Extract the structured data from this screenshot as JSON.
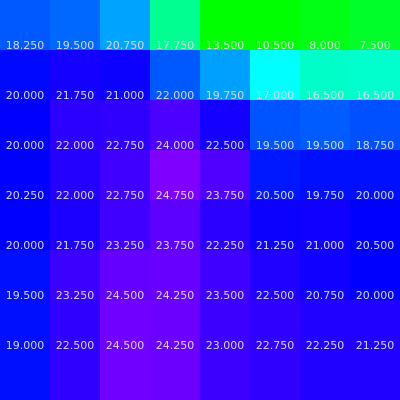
{
  "chart_data": {
    "type": "heatmap",
    "title": "",
    "xlabel": "",
    "ylabel": "",
    "grid": false,
    "legend": "none",
    "value_format": "0.000",
    "colormap": "gist_rainbow-like, reversed: low values green/cyan, high values violet",
    "value_range": [
      7.5,
      24.75
    ],
    "color_stops": [
      {
        "value": 7.5,
        "color": "#00ff2a"
      },
      {
        "value": 10.5,
        "color": "#00ff00"
      },
      {
        "value": 13.5,
        "color": "#00ff15"
      },
      {
        "value": 16.5,
        "color": "#00ffc8"
      },
      {
        "value": 17.5,
        "color": "#00ffcc"
      },
      {
        "value": 17.75,
        "color": "#00ff90"
      },
      {
        "value": 18.25,
        "color": "#0058ff"
      },
      {
        "value": 18.5,
        "color": "#006cff"
      },
      {
        "value": 18.75,
        "color": "#0054ff"
      },
      {
        "value": 19.0,
        "color": "#0024ff"
      },
      {
        "value": 19.5,
        "color": "#0018ff"
      },
      {
        "value": 19.75,
        "color": "#0010ff"
      },
      {
        "value": 20.0,
        "color": "#0000ff"
      },
      {
        "value": 20.5,
        "color": "#0c00ff"
      },
      {
        "value": 21.0,
        "color": "#1400ff"
      },
      {
        "value": 21.75,
        "color": "#2400ff"
      },
      {
        "value": 22.0,
        "color": "#2c00ff"
      },
      {
        "value": 22.5,
        "color": "#3a00ff"
      },
      {
        "value": 23.0,
        "color": "#4800ff"
      },
      {
        "value": 23.5,
        "color": "#5800ff"
      },
      {
        "value": 24.0,
        "color": "#6400ff"
      },
      {
        "value": 24.5,
        "color": "#7000ff"
      },
      {
        "value": 24.75,
        "color": "#7a00ff"
      }
    ],
    "rows": [
      [
        18.25,
        19.5,
        20.75,
        17.75,
        13.5,
        10.5,
        8.0,
        7.5
      ],
      [
        20.0,
        21.75,
        21.0,
        22.0,
        19.75,
        17.0,
        16.5,
        16.5
      ],
      [
        20.0,
        22.0,
        22.75,
        24.0,
        22.5,
        19.5,
        19.5,
        18.75
      ],
      [
        20.25,
        22.0,
        22.75,
        24.75,
        23.75,
        20.5,
        19.75,
        20.0
      ],
      [
        20.0,
        21.75,
        23.25,
        23.75,
        22.25,
        21.25,
        21.0,
        20.5
      ],
      [
        19.5,
        23.25,
        24.5,
        24.25,
        23.5,
        22.5,
        20.75,
        20.0
      ],
      [
        19.0,
        22.5,
        24.5,
        24.25,
        23.0,
        22.75,
        22.25,
        21.25
      ],
      [
        null,
        null,
        null,
        null,
        null,
        null,
        null,
        null
      ]
    ],
    "cell_colors_observed": [
      [
        "#0058ff",
        "#0068ff",
        "#00a4ff",
        "#00ff90",
        "#00ff00",
        "#00ff00",
        "#00ff15",
        "#00ff2a"
      ],
      [
        "#0008ff",
        "#1400ff",
        "#0c00ff",
        "#0058ff",
        "#00a0ff",
        "#00ffff",
        "#00ffc8",
        "#00ffcc"
      ],
      [
        "#0000ff",
        "#2c00ff",
        "#3000ff",
        "#4c00ff",
        "#1400ff",
        "#0054ff",
        "#005cff",
        "#0050ff"
      ],
      [
        "#0000ff",
        "#2400ff",
        "#4000ff",
        "#8000ff",
        "#5000ff",
        "#0018ff",
        "#0010ff",
        "#0010ff"
      ],
      [
        "#0000ff",
        "#1c00ff",
        "#4000ff",
        "#5c00ff",
        "#2c00ff",
        "#0c00ff",
        "#1000ff",
        "#0000ff"
      ],
      [
        "#0010ff",
        "#3c00ff",
        "#6400ff",
        "#6800ff",
        "#4000ff",
        "#2000ff",
        "#1000ff",
        "#0000ff"
      ],
      [
        "#0010ff",
        "#3000ff",
        "#7000ff",
        "#6c00ff",
        "#3c00ff",
        "#3000ff",
        "#2000ff",
        "#2000ff"
      ],
      [
        "#0010ff",
        "#3000ff",
        "#7000ff",
        "#6c00ff",
        "#3c00ff",
        "#3000ff",
        "#2000ff",
        "#2000ff"
      ]
    ]
  }
}
